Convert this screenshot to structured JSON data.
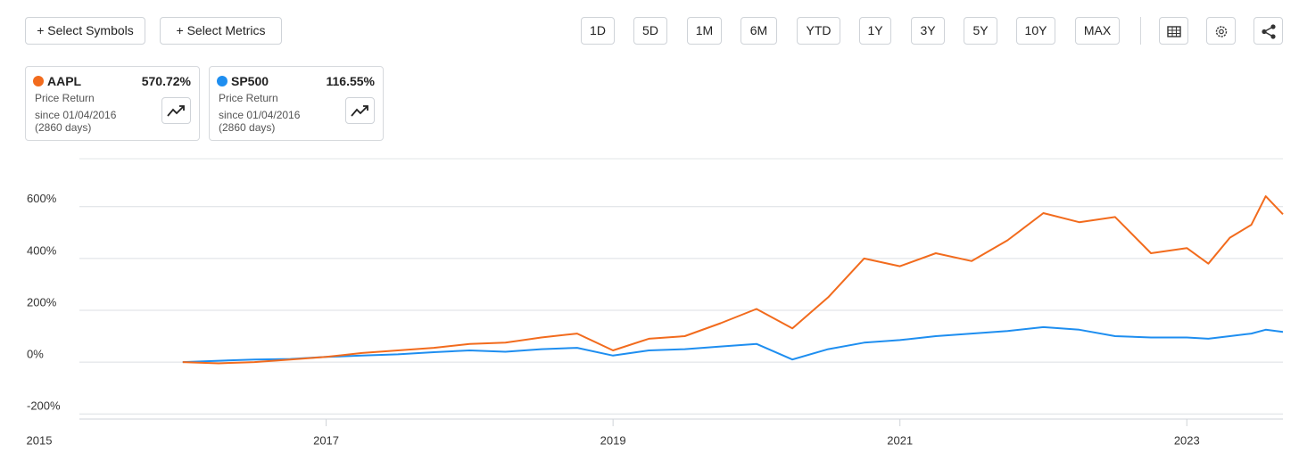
{
  "toolbar": {
    "select_buttons": [
      "+ Select Symbols",
      "+ Select Metrics"
    ],
    "periods": [
      "1D",
      "5D",
      "1M",
      "6M",
      "YTD",
      "1Y",
      "3Y",
      "5Y",
      "10Y",
      "MAX"
    ]
  },
  "cards": [
    {
      "value_label": "570.72%",
      "metric": "Price Return",
      "since": "since 01/04/2016",
      "days": "(2860 days)"
    },
    {
      "value_label": "116.55%",
      "metric": "Price Return",
      "since": "since 01/04/2016",
      "days": "(2860 days)"
    }
  ],
  "chart_data": {
    "type": "line",
    "x": [
      2016.0,
      2016.25,
      2016.5,
      2016.75,
      2017.0,
      2017.25,
      2017.5,
      2017.75,
      2018.0,
      2018.25,
      2018.5,
      2018.75,
      2019.0,
      2019.25,
      2019.5,
      2019.75,
      2020.0,
      2020.25,
      2020.5,
      2020.75,
      2021.0,
      2021.25,
      2021.5,
      2021.75,
      2022.0,
      2022.25,
      2022.5,
      2022.75,
      2023.0,
      2023.15,
      2023.3,
      2023.45,
      2023.55,
      2023.67
    ],
    "series": [
      {
        "name": "AAPL",
        "color": "#f26b1d",
        "values": [
          0,
          -5,
          0,
          10,
          20,
          35,
          45,
          55,
          70,
          75,
          95,
          110,
          45,
          90,
          100,
          150,
          205,
          130,
          250,
          400,
          370,
          420,
          390,
          470,
          575,
          540,
          560,
          420,
          440,
          380,
          480,
          530,
          640,
          570.72
        ]
      },
      {
        "name": "SP500",
        "color": "#1e8ef0",
        "values": [
          0,
          5,
          10,
          12,
          20,
          25,
          30,
          38,
          45,
          40,
          50,
          55,
          25,
          45,
          50,
          60,
          70,
          10,
          50,
          75,
          85,
          100,
          110,
          120,
          135,
          125,
          100,
          95,
          95,
          90,
          100,
          110,
          125,
          116.55
        ]
      }
    ],
    "xlim": [
      2015,
      2023.67
    ],
    "xticks": [
      2015,
      2017,
      2019,
      2021,
      2023
    ],
    "ylim": [
      -220,
      785
    ],
    "yticks": [
      {
        "value": -200,
        "label": "-200%"
      },
      {
        "value": 0,
        "label": "0%"
      },
      {
        "value": 200,
        "label": "200%"
      },
      {
        "value": 400,
        "label": "400%"
      },
      {
        "value": 600,
        "label": "600%"
      }
    ],
    "grid": true
  }
}
